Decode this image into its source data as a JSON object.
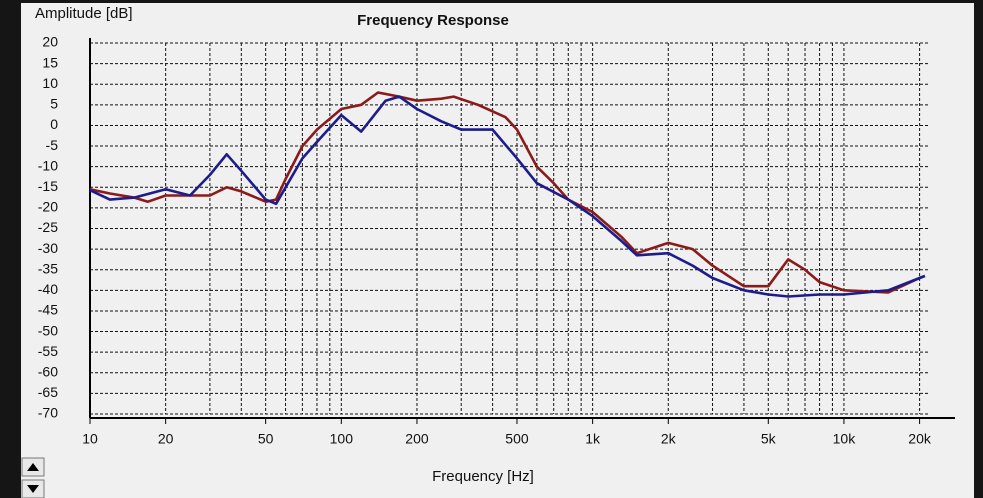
{
  "chart_data": {
    "type": "line",
    "title": "Frequency Response",
    "y_label": "Amplitude [dB]",
    "x_label": "Frequency [Hz]",
    "log_x": true,
    "grid": true,
    "xlim": [
      10,
      22000
    ],
    "ylim": [
      -70,
      20
    ],
    "xticks": [
      10,
      20,
      50,
      100,
      200,
      500,
      {
        "value": 1000,
        "label": "1k"
      },
      {
        "value": 2000,
        "label": "2k"
      },
      {
        "value": 5000,
        "label": "5k"
      },
      {
        "value": 10000,
        "label": "10k"
      },
      {
        "value": 20000,
        "label": "20k"
      }
    ],
    "xgrid": [
      10,
      20,
      30,
      40,
      50,
      60,
      70,
      80,
      90,
      100,
      200,
      300,
      400,
      500,
      600,
      700,
      800,
      900,
      1000,
      2000,
      3000,
      4000,
      5000,
      6000,
      7000,
      8000,
      9000,
      10000,
      20000
    ],
    "yticks": [
      20,
      15,
      10,
      5,
      0,
      -5,
      -10,
      -15,
      -20,
      -25,
      -30,
      -35,
      -40,
      -45,
      -50,
      -55,
      -60,
      -65,
      -70
    ],
    "series": [
      {
        "color": "#1c1c8c",
        "x": [
          10,
          12,
          15,
          20,
          25,
          30,
          35,
          40,
          50,
          55,
          60,
          70,
          80,
          100,
          120,
          150,
          170,
          200,
          250,
          300,
          400,
          500,
          600,
          800,
          1000,
          1300,
          1500,
          2000,
          2500,
          3000,
          4000,
          5000,
          6000,
          8000,
          10000,
          15000,
          20000,
          21000
        ],
        "values": [
          -15.7,
          -18,
          -17.5,
          -15.5,
          -17,
          -12,
          -7,
          -11,
          -18,
          -19,
          -15,
          -8,
          -4,
          2.5,
          -1.5,
          6,
          7,
          4,
          1,
          -1,
          -1,
          -8,
          -14,
          -18,
          -22,
          -28,
          -31.5,
          -31,
          -34,
          -37,
          -40,
          -41,
          -41.5,
          -41,
          -41,
          -40,
          -37,
          -36.5
        ]
      },
      {
        "color": "#8b1a1a",
        "x": [
          10,
          12,
          15,
          17,
          20,
          30,
          35,
          40,
          50,
          55,
          60,
          70,
          80,
          100,
          120,
          140,
          170,
          200,
          250,
          280,
          350,
          450,
          500,
          600,
          700,
          800,
          1000,
          1300,
          1500,
          2000,
          2500,
          3000,
          4000,
          5000,
          6000,
          7000,
          8000,
          10000,
          15000,
          20000,
          21000
        ],
        "values": [
          -15.5,
          -16.5,
          -17.5,
          -18.5,
          -17,
          -17,
          -15,
          -16,
          -18.5,
          -18,
          -13,
          -5,
          -1,
          4,
          5,
          8,
          7,
          6,
          6.5,
          7,
          5,
          2,
          -1,
          -10,
          -14,
          -18,
          -21,
          -27,
          -31,
          -28.5,
          -30,
          -34,
          -39,
          -39,
          -32.5,
          -35,
          -38,
          -40,
          -40.5,
          -37,
          -36.5
        ]
      }
    ]
  }
}
